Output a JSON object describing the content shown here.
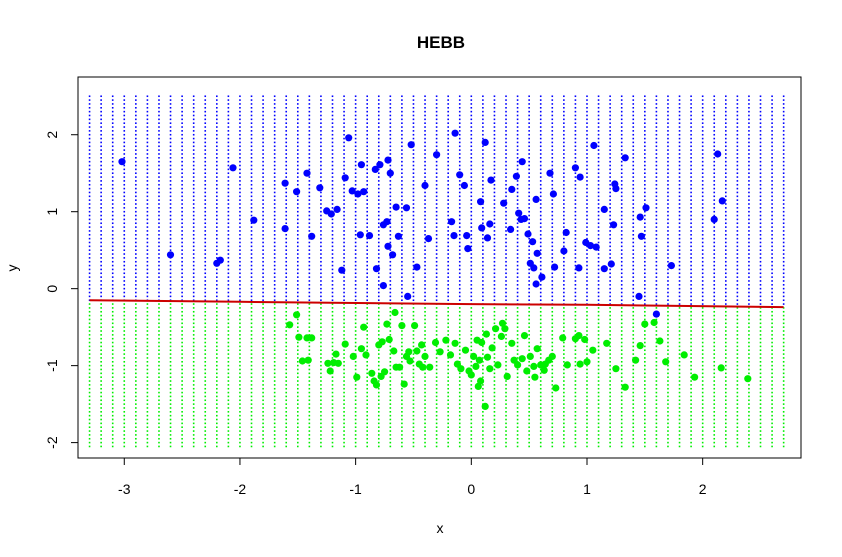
{
  "chart_data": {
    "type": "scatter",
    "title": "HEBB",
    "xlabel": "x",
    "ylabel": "y",
    "xlim": [
      -3.4,
      2.85
    ],
    "ylim": [
      -2.2,
      2.75
    ],
    "xticks": [
      -3,
      -2,
      -1,
      0,
      1,
      2
    ],
    "yticks": [
      -2,
      -1,
      0,
      1,
      2
    ],
    "grid": {
      "x_start": -3.3,
      "x_end": 2.7,
      "x_step": 0.1,
      "y_start": -2.05,
      "y_end": 2.52,
      "y_step": 0.05
    },
    "decision_boundary": {
      "points": [
        [
          -3.3,
          -0.15
        ],
        [
          -2.0,
          -0.17
        ],
        [
          0.0,
          -0.2
        ],
        [
          1.0,
          -0.21
        ],
        [
          2.7,
          -0.24
        ]
      ],
      "color": "#cc0000"
    },
    "colors": {
      "upper": "#0000ff",
      "lower": "#00ee00"
    },
    "series": [
      {
        "color": "#0000ff",
        "points": [
          [
            -3.02,
            1.65
          ],
          [
            -2.6,
            0.44
          ],
          [
            -2.2,
            0.33
          ],
          [
            -2.17,
            0.37
          ],
          [
            -2.06,
            1.57
          ],
          [
            -1.88,
            0.89
          ],
          [
            -1.61,
            1.37
          ],
          [
            -1.61,
            0.78
          ],
          [
            -1.51,
            1.26
          ],
          [
            -1.42,
            1.5
          ],
          [
            -1.38,
            0.68
          ],
          [
            -1.31,
            1.31
          ],
          [
            -1.25,
            1.01
          ],
          [
            -1.21,
            0.97
          ],
          [
            -1.16,
            1.03
          ],
          [
            -1.12,
            0.24
          ],
          [
            -1.09,
            1.44
          ],
          [
            -1.06,
            1.96
          ],
          [
            -1.03,
            1.27
          ],
          [
            -0.98,
            1.23
          ],
          [
            -0.96,
            0.7
          ],
          [
            -0.95,
            1.61
          ],
          [
            -0.93,
            1.26
          ],
          [
            -0.88,
            0.69
          ],
          [
            -0.83,
            1.55
          ],
          [
            -0.82,
            0.26
          ],
          [
            -0.79,
            1.61
          ],
          [
            -0.76,
            0.83
          ],
          [
            -0.76,
            0.04
          ],
          [
            -0.73,
            0.87
          ],
          [
            -0.72,
            1.67
          ],
          [
            -0.72,
            0.55
          ],
          [
            -0.7,
            1.5
          ],
          [
            -0.68,
            0.44
          ],
          [
            -0.65,
            1.06
          ],
          [
            -0.63,
            0.68
          ],
          [
            -0.56,
            1.05
          ],
          [
            -0.55,
            -0.1
          ],
          [
            -0.52,
            1.87
          ],
          [
            -0.47,
            0.28
          ],
          [
            -0.4,
            1.34
          ],
          [
            -0.37,
            0.65
          ],
          [
            -0.3,
            1.74
          ],
          [
            -0.17,
            0.87
          ],
          [
            -0.15,
            0.69
          ],
          [
            -0.14,
            2.02
          ],
          [
            -0.1,
            1.48
          ],
          [
            -0.06,
            1.34
          ],
          [
            -0.04,
            0.69
          ],
          [
            -0.03,
            0.52
          ],
          [
            0.08,
            1.13
          ],
          [
            0.09,
            0.79
          ],
          [
            0.12,
            1.9
          ],
          [
            0.14,
            0.66
          ],
          [
            0.16,
            0.84
          ],
          [
            0.17,
            1.41
          ],
          [
            0.28,
            1.11
          ],
          [
            0.34,
            0.77
          ],
          [
            0.35,
            1.29
          ],
          [
            0.39,
            1.46
          ],
          [
            0.41,
            0.98
          ],
          [
            0.43,
            0.9
          ],
          [
            0.44,
            1.65
          ],
          [
            0.46,
            0.91
          ],
          [
            0.49,
            0.71
          ],
          [
            0.51,
            0.33
          ],
          [
            0.53,
            0.61
          ],
          [
            0.54,
            0.27
          ],
          [
            0.56,
            1.16
          ],
          [
            0.56,
            0.06
          ],
          [
            0.57,
            0.46
          ],
          [
            0.61,
            0.15
          ],
          [
            0.68,
            1.5
          ],
          [
            0.71,
            1.23
          ],
          [
            0.72,
            0.28
          ],
          [
            0.8,
            0.49
          ],
          [
            0.82,
            0.73
          ],
          [
            0.9,
            1.57
          ],
          [
            0.94,
            1.45
          ],
          [
            0.93,
            0.27
          ],
          [
            0.99,
            0.6
          ],
          [
            1.03,
            0.56
          ],
          [
            1.06,
            1.86
          ],
          [
            1.08,
            0.54
          ],
          [
            1.15,
            1.03
          ],
          [
            1.15,
            0.26
          ],
          [
            1.21,
            0.32
          ],
          [
            1.23,
            0.83
          ],
          [
            1.24,
            1.36
          ],
          [
            1.25,
            1.3
          ],
          [
            1.33,
            1.7
          ],
          [
            1.45,
            -0.1
          ],
          [
            1.46,
            0.93
          ],
          [
            1.47,
            0.68
          ],
          [
            1.51,
            1.05
          ],
          [
            1.6,
            -0.33
          ],
          [
            1.73,
            0.3
          ],
          [
            2.1,
            0.9
          ],
          [
            2.13,
            1.75
          ],
          [
            2.17,
            1.14
          ]
        ]
      },
      {
        "color": "#00ee00",
        "points": [
          [
            -1.57,
            -0.47
          ],
          [
            -1.51,
            -0.34
          ],
          [
            -1.49,
            -0.63
          ],
          [
            -1.46,
            -0.94
          ],
          [
            -1.42,
            -0.64
          ],
          [
            -1.41,
            -0.93
          ],
          [
            -1.38,
            -0.64
          ],
          [
            -1.24,
            -0.97
          ],
          [
            -1.22,
            -1.07
          ],
          [
            -1.19,
            -0.96
          ],
          [
            -1.17,
            -0.85
          ],
          [
            -1.15,
            -0.97
          ],
          [
            -1.09,
            -0.72
          ],
          [
            -1.02,
            -0.88
          ],
          [
            -0.99,
            -1.15
          ],
          [
            -0.95,
            -0.78
          ],
          [
            -0.93,
            -0.5
          ],
          [
            -0.91,
            -0.86
          ],
          [
            -0.86,
            -1.1
          ],
          [
            -0.84,
            -1.2
          ],
          [
            -0.82,
            -1.25
          ],
          [
            -0.8,
            -0.73
          ],
          [
            -0.78,
            -1.14
          ],
          [
            -0.77,
            -0.69
          ],
          [
            -0.75,
            -1.08
          ],
          [
            -0.73,
            -0.46
          ],
          [
            -0.71,
            -0.66
          ],
          [
            -0.67,
            -0.81
          ],
          [
            -0.66,
            -0.31
          ],
          [
            -0.65,
            -1.02
          ],
          [
            -0.62,
            -1.02
          ],
          [
            -0.6,
            -0.48
          ],
          [
            -0.58,
            -1.24
          ],
          [
            -0.56,
            -0.88
          ],
          [
            -0.54,
            -0.82
          ],
          [
            -0.53,
            -0.94
          ],
          [
            -0.49,
            -0.48
          ],
          [
            -0.47,
            -0.81
          ],
          [
            -0.45,
            -0.98
          ],
          [
            -0.43,
            -0.73
          ],
          [
            -0.42,
            -1.02
          ],
          [
            -0.4,
            -0.88
          ],
          [
            -0.36,
            -1.02
          ],
          [
            -0.31,
            -0.7
          ],
          [
            -0.27,
            -0.82
          ],
          [
            -0.22,
            -0.67
          ],
          [
            -0.18,
            -0.86
          ],
          [
            -0.14,
            -0.71
          ],
          [
            -0.12,
            -0.98
          ],
          [
            -0.09,
            -1.04
          ],
          [
            -0.05,
            -0.8
          ],
          [
            -0.02,
            -1.07
          ],
          [
            0.0,
            -1.12
          ],
          [
            0.02,
            -0.88
          ],
          [
            0.04,
            -1.01
          ],
          [
            0.05,
            -0.67
          ],
          [
            0.06,
            -1.27
          ],
          [
            0.07,
            -0.93
          ],
          [
            0.08,
            -1.2
          ],
          [
            0.09,
            -0.7
          ],
          [
            0.12,
            -1.53
          ],
          [
            0.13,
            -0.59
          ],
          [
            0.14,
            -0.89
          ],
          [
            0.16,
            -1.04
          ],
          [
            0.18,
            -0.77
          ],
          [
            0.21,
            -0.52
          ],
          [
            0.23,
            -0.99
          ],
          [
            0.26,
            -0.62
          ],
          [
            0.27,
            -0.45
          ],
          [
            0.29,
            -0.52
          ],
          [
            0.31,
            -1.14
          ],
          [
            0.35,
            -0.71
          ],
          [
            0.37,
            -0.93
          ],
          [
            0.4,
            -0.99
          ],
          [
            0.44,
            -0.91
          ],
          [
            0.46,
            -0.61
          ],
          [
            0.48,
            -1.07
          ],
          [
            0.51,
            -0.88
          ],
          [
            0.54,
            -1.01
          ],
          [
            0.55,
            -1.15
          ],
          [
            0.57,
            -0.78
          ],
          [
            0.6,
            -0.99
          ],
          [
            0.63,
            -1.06
          ],
          [
            0.64,
            -0.98
          ],
          [
            0.67,
            -0.93
          ],
          [
            0.7,
            -0.88
          ],
          [
            0.73,
            -1.29
          ],
          [
            0.79,
            -0.64
          ],
          [
            0.83,
            -0.99
          ],
          [
            0.9,
            -0.65
          ],
          [
            0.93,
            -0.61
          ],
          [
            0.94,
            -0.98
          ],
          [
            0.98,
            -0.66
          ],
          [
            1.0,
            -0.95
          ],
          [
            1.05,
            -0.8
          ],
          [
            1.17,
            -0.71
          ],
          [
            1.25,
            -1.04
          ],
          [
            1.33,
            -1.28
          ],
          [
            1.42,
            -0.93
          ],
          [
            1.46,
            -0.74
          ],
          [
            1.5,
            -0.46
          ],
          [
            1.58,
            -0.44
          ],
          [
            1.63,
            -0.68
          ],
          [
            1.68,
            -0.95
          ],
          [
            1.84,
            -0.86
          ],
          [
            1.93,
            -1.15
          ],
          [
            2.16,
            -1.03
          ],
          [
            2.39,
            -1.17
          ]
        ]
      }
    ]
  }
}
